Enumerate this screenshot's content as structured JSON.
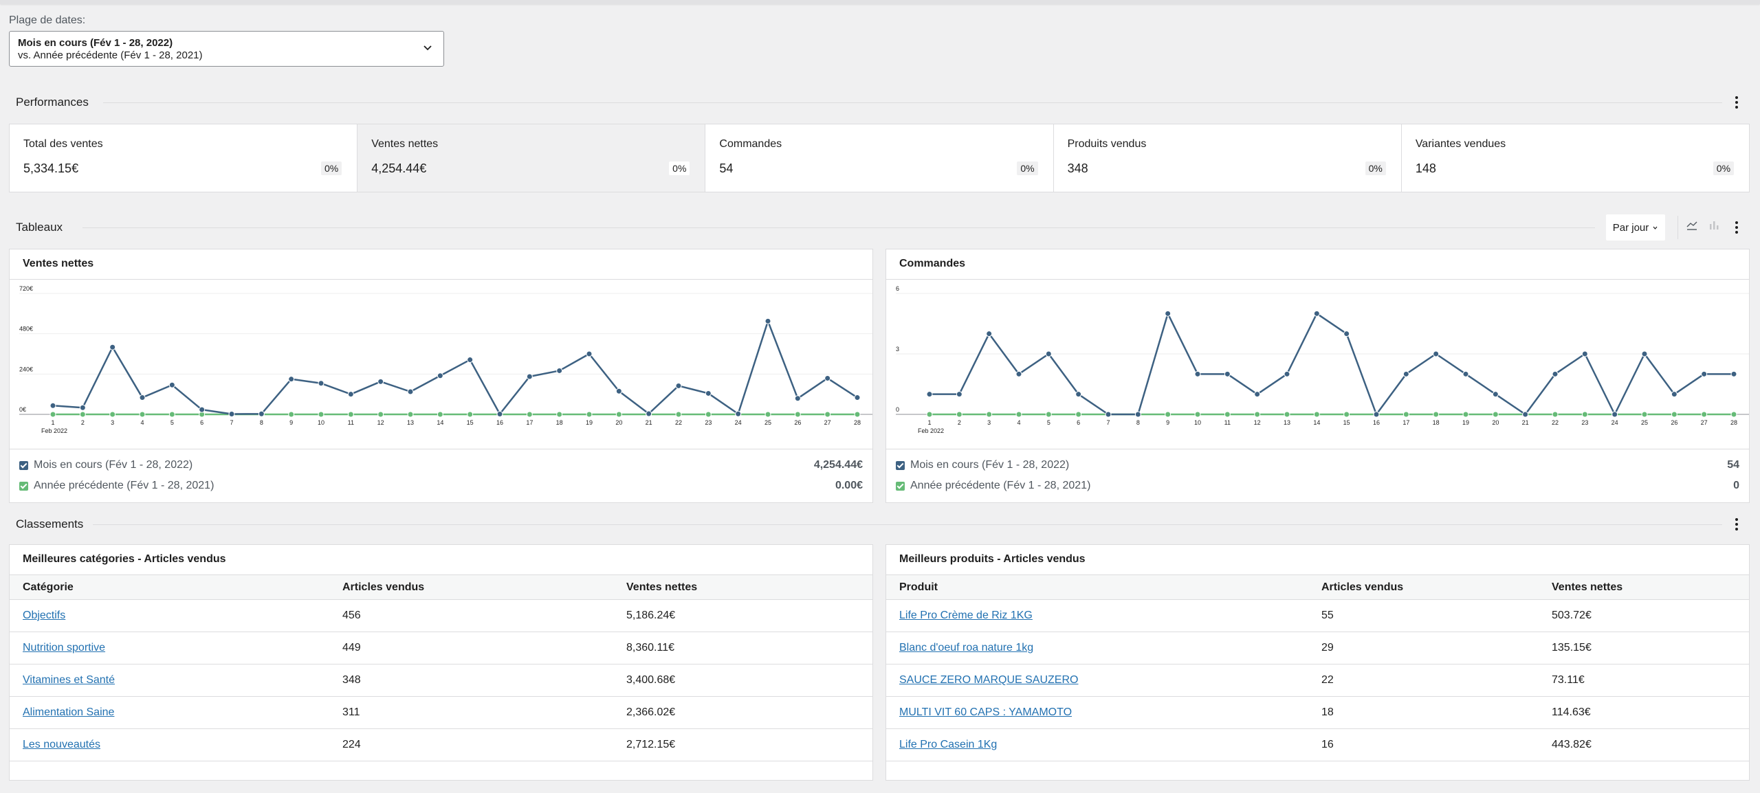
{
  "date_range": {
    "label": "Plage de dates:",
    "current": "Mois en cours (Fév 1 - 28, 2022)",
    "compare": "vs. Année précédente (Fév 1 - 28, 2021)"
  },
  "performance": {
    "title": "Performances",
    "items": [
      {
        "label": "Total des ventes",
        "value": "5,334.15€",
        "delta": "0%"
      },
      {
        "label": "Ventes nettes",
        "value": "4,254.44€",
        "delta": "0%"
      },
      {
        "label": "Commandes",
        "value": "54",
        "delta": "0%"
      },
      {
        "label": "Produits vendus",
        "value": "348",
        "delta": "0%"
      },
      {
        "label": "Variantes vendues",
        "value": "148",
        "delta": "0%"
      }
    ]
  },
  "charts_section": {
    "title": "Tableaux",
    "interval": "Par jour"
  },
  "chart_data": [
    {
      "type": "line",
      "title": "Ventes nettes",
      "x": [
        "1",
        "2",
        "3",
        "4",
        "5",
        "6",
        "7",
        "8",
        "9",
        "10",
        "11",
        "12",
        "13",
        "14",
        "15",
        "16",
        "17",
        "18",
        "19",
        "20",
        "21",
        "22",
        "23",
        "24",
        "25",
        "26",
        "27",
        "28"
      ],
      "x_sublabel": "Feb 2022",
      "y_ticks": [
        "0€",
        "240€",
        "480€",
        "720€"
      ],
      "ylim": [
        0,
        720
      ],
      "series": [
        {
          "name": "Mois en cours (Fév 1 - 28, 2022)",
          "color": "#3d6182",
          "values": [
            52,
            40,
            400,
            100,
            175,
            28,
            2,
            3,
            210,
            185,
            120,
            195,
            135,
            230,
            325,
            2,
            225,
            260,
            360,
            138,
            4,
            170,
            125,
            3,
            555,
            95,
            215,
            100
          ]
        },
        {
          "name": "Année précédente (Fév 1 - 28, 2021)",
          "color": "#66bb77",
          "values": [
            0,
            0,
            0,
            0,
            0,
            0,
            0,
            0,
            0,
            0,
            0,
            0,
            0,
            0,
            0,
            0,
            0,
            0,
            0,
            0,
            0,
            0,
            0,
            0,
            0,
            0,
            0,
            0
          ]
        }
      ],
      "legend_totals": [
        "4,254.44€",
        "0.00€"
      ]
    },
    {
      "type": "line",
      "title": "Commandes",
      "x": [
        "1",
        "2",
        "3",
        "4",
        "5",
        "6",
        "7",
        "8",
        "9",
        "10",
        "11",
        "12",
        "13",
        "14",
        "15",
        "16",
        "17",
        "18",
        "19",
        "20",
        "21",
        "22",
        "23",
        "24",
        "25",
        "26",
        "27",
        "28"
      ],
      "x_sublabel": "Feb 2022",
      "y_ticks": [
        "0",
        "3",
        "6"
      ],
      "ylim": [
        0,
        6
      ],
      "series": [
        {
          "name": "Mois en cours (Fév 1 - 28, 2022)",
          "color": "#3d6182",
          "values": [
            1,
            1,
            4,
            2,
            3,
            1,
            0,
            0,
            5,
            2,
            2,
            1,
            2,
            5,
            4,
            0,
            2,
            3,
            2,
            1,
            0,
            2,
            3,
            0,
            3,
            1,
            2,
            2
          ]
        },
        {
          "name": "Année précédente (Fév 1 - 28, 2021)",
          "color": "#66bb77",
          "values": [
            0,
            0,
            0,
            0,
            0,
            0,
            0,
            0,
            0,
            0,
            0,
            0,
            0,
            0,
            0,
            0,
            0,
            0,
            0,
            0,
            0,
            0,
            0,
            0,
            0,
            0,
            0,
            0
          ]
        }
      ],
      "legend_totals": [
        "54",
        "0"
      ]
    }
  ],
  "leaderboards": {
    "title": "Classements",
    "categories": {
      "title": "Meilleures catégories - Articles vendus",
      "headers": [
        "Catégorie",
        "Articles vendus",
        "Ventes nettes"
      ],
      "rows": [
        [
          "Objectifs",
          "456",
          "5,186.24€"
        ],
        [
          "Nutrition sportive",
          "449",
          "8,360.11€"
        ],
        [
          "Vitamines et Santé",
          "348",
          "3,400.68€"
        ],
        [
          "Alimentation Saine",
          "311",
          "2,366.02€"
        ],
        [
          "Les nouveautés",
          "224",
          "2,712.15€"
        ]
      ]
    },
    "products": {
      "title": "Meilleurs produits - Articles vendus",
      "headers": [
        "Produit",
        "Articles vendus",
        "Ventes nettes"
      ],
      "rows": [
        [
          "Life Pro Crème de Riz 1KG",
          "55",
          "503.72€"
        ],
        [
          "Blanc d'oeuf roa nature 1kg",
          "29",
          "135.15€"
        ],
        [
          "SAUCE ZERO MARQUE SAUZERO",
          "22",
          "73.11€"
        ],
        [
          "MULTI VIT 60 CAPS : YAMAMOTO",
          "18",
          "114.63€"
        ],
        [
          "Life Pro Casein 1Kg",
          "16",
          "443.82€"
        ]
      ]
    }
  },
  "icons": {
    "chevron": "chevron-down-icon",
    "menu": "more-vertical-icon",
    "line_chart": "line-chart-icon",
    "bar_chart": "bar-chart-icon"
  }
}
